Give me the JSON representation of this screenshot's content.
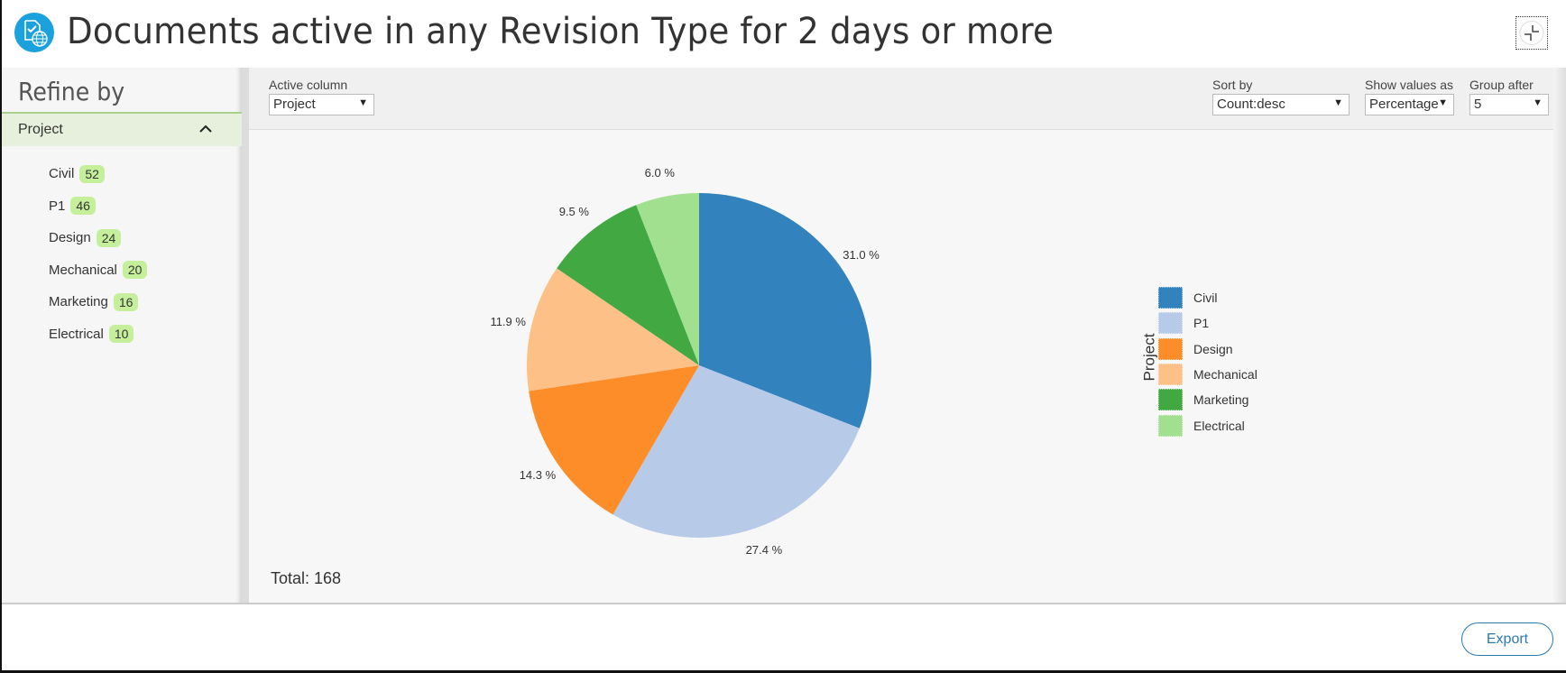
{
  "header": {
    "title": "Documents active in any Revision Type for 2 days or more",
    "app_icon": "document-globe-icon",
    "collapse_icon": "collapse-icon"
  },
  "sidebar": {
    "title": "Refine by",
    "facet": {
      "label": "Project",
      "expanded": true,
      "items": [
        {
          "label": "Civil",
          "count": "52"
        },
        {
          "label": "P1",
          "count": "46"
        },
        {
          "label": "Design",
          "count": "24"
        },
        {
          "label": "Mechanical",
          "count": "20"
        },
        {
          "label": "Marketing",
          "count": "16"
        },
        {
          "label": "Electrical",
          "count": "10"
        }
      ]
    }
  },
  "toolbar": {
    "active_column": {
      "label": "Active column",
      "value": "Project"
    },
    "sort_by": {
      "label": "Sort by",
      "value": "Count:desc"
    },
    "show_values_as": {
      "label": "Show values as",
      "value": "Percentage"
    },
    "group_after": {
      "label": "Group after",
      "value": "5"
    }
  },
  "chart": {
    "total": "Total: 168",
    "legend_title": "Project"
  },
  "footer": {
    "export_label": "Export"
  },
  "chart_data": {
    "type": "pie",
    "title": "Documents active in any Revision Type for 2 days or more",
    "categories": [
      "Civil",
      "P1",
      "Design",
      "Mechanical",
      "Marketing",
      "Electrical"
    ],
    "values": [
      52,
      46,
      24,
      20,
      16,
      10
    ],
    "percent_labels": [
      "31.0 %",
      "27.4 %",
      "14.3 %",
      "11.9 %",
      "9.5 %",
      "6.0 %"
    ],
    "colors": [
      "#3182bd",
      "#b7cbe9",
      "#fd8d28",
      "#fdc086",
      "#41a842",
      "#a1e08f"
    ],
    "legend_title": "Project",
    "legend_position": "right",
    "total": 168,
    "show_values_as": "Percentage"
  }
}
